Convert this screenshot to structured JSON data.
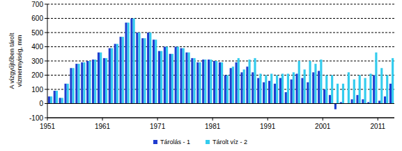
{
  "chart_data": {
    "type": "bar",
    "y_label": "A vízgyűjtőben tárolt vízmennyiség, mm",
    "categories": [
      "1951",
      null,
      null,
      null,
      null,
      null,
      null,
      null,
      null,
      null,
      "1961",
      null,
      null,
      null,
      null,
      null,
      null,
      null,
      null,
      null,
      "1971",
      null,
      null,
      null,
      null,
      null,
      null,
      null,
      null,
      null,
      "1981",
      null,
      null,
      null,
      null,
      null,
      null,
      null,
      null,
      null,
      "1991",
      null,
      null,
      null,
      null,
      null,
      null,
      null,
      null,
      null,
      "2001",
      null,
      null,
      null,
      null,
      null,
      null,
      null,
      null,
      null,
      "2011",
      null,
      null
    ],
    "series": [
      {
        "name": "Tárolás - 1",
        "color": "#1f3ccf",
        "values": [
          50,
          90,
          40,
          140,
          250,
          280,
          290,
          300,
          310,
          360,
          320,
          390,
          420,
          470,
          570,
          600,
          500,
          460,
          500,
          450,
          370,
          400,
          350,
          400,
          390,
          360,
          320,
          290,
          310,
          310,
          300,
          290,
          200,
          250,
          290,
          220,
          260,
          220,
          180,
          150,
          160,
          140,
          180,
          80,
          170,
          210,
          180,
          150,
          220,
          230,
          100,
          60,
          -40,
          10,
          0,
          30,
          60,
          30,
          10,
          200,
          20,
          50,
          140
        ]
      },
      {
        "name": "Tárolt víz - 2",
        "color": "#33ccee",
        "values": [
          50,
          90,
          40,
          140,
          250,
          280,
          290,
          300,
          310,
          360,
          320,
          390,
          420,
          470,
          570,
          600,
          500,
          460,
          500,
          450,
          370,
          400,
          350,
          400,
          390,
          360,
          320,
          290,
          310,
          310,
          300,
          290,
          200,
          260,
          320,
          240,
          310,
          320,
          210,
          200,
          210,
          200,
          210,
          210,
          220,
          300,
          240,
          300,
          280,
          310,
          200,
          200,
          140,
          140,
          220,
          170,
          200,
          180,
          210,
          360,
          250,
          200,
          320
        ]
      }
    ],
    "ylim": [
      -100,
      700
    ],
    "yticks": [
      -100,
      0,
      100,
      200,
      300,
      400,
      500,
      600,
      700
    ],
    "grid": true,
    "legend": "bottom"
  }
}
